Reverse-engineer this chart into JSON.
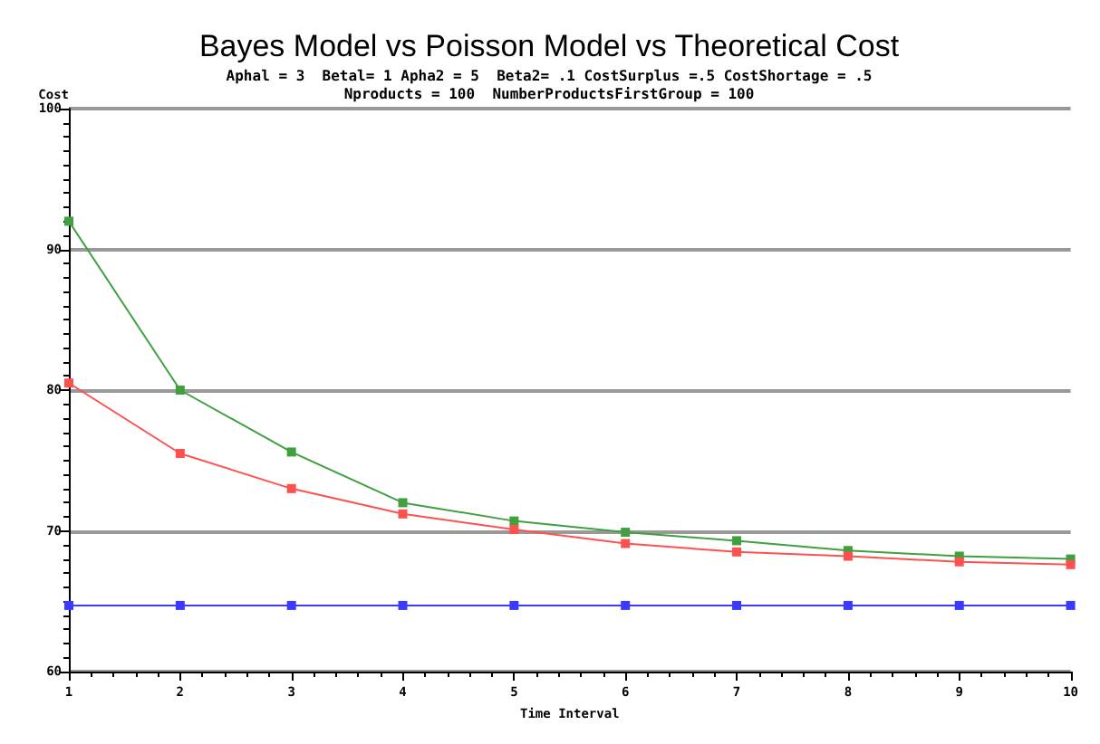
{
  "chart_data": {
    "type": "line",
    "title": "Bayes Model vs Poisson Model vs Theoretical Cost",
    "subtitle": "Aphal = 3  Betal= 1 Apha2 = 5  Beta2= .1 CostSurplus =.5 CostShortage = .5\nNproducts = 100  NumberProductsFirstGroup = 100",
    "xlabel": "Time Interval",
    "ylabel": "Cost",
    "x": [
      1,
      2,
      3,
      4,
      5,
      6,
      7,
      8,
      9,
      10
    ],
    "series": [
      {
        "color": "#40a040",
        "values": [
          92.0,
          80.0,
          75.6,
          72.0,
          70.7,
          69.9,
          69.3,
          68.6,
          68.2,
          68.0
        ]
      },
      {
        "color": "#ff5050",
        "values": [
          80.5,
          75.5,
          73.0,
          71.2,
          70.1,
          69.1,
          68.5,
          68.2,
          67.8,
          67.6
        ]
      },
      {
        "color": "#3a3aff",
        "values": [
          64.7,
          64.7,
          64.7,
          64.7,
          64.7,
          64.7,
          64.7,
          64.7,
          64.7,
          64.7
        ]
      }
    ],
    "xlim": [
      1,
      10
    ],
    "xticks": [
      1,
      2,
      3,
      4,
      5,
      6,
      7,
      8,
      9,
      10
    ],
    "ylim": [
      60,
      100
    ],
    "yticks": [
      60,
      70,
      80,
      90,
      100
    ],
    "grid": "y",
    "marker": "square",
    "line_style": "solid"
  }
}
